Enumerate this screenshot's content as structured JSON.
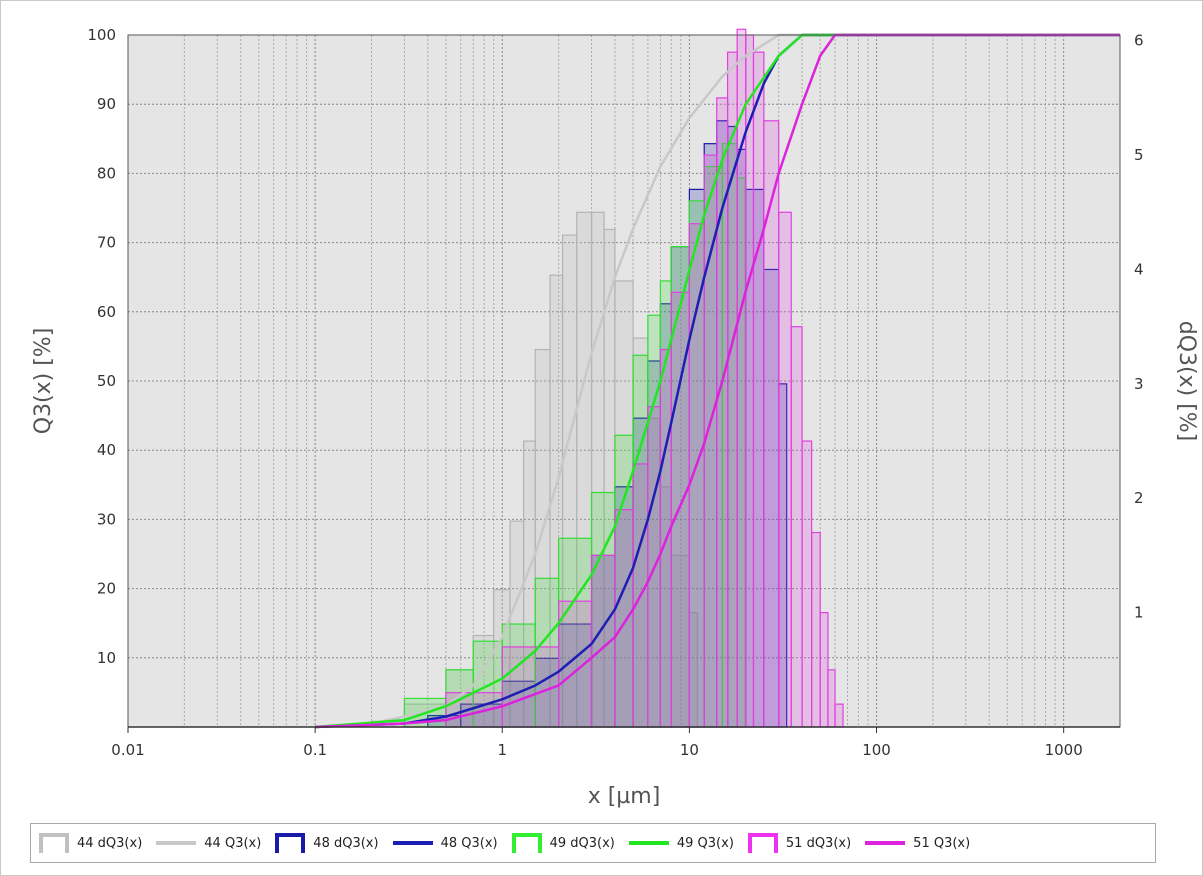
{
  "chart_data": {
    "type": "bar+line",
    "title": "",
    "xlabel": "x [µm]",
    "ylabel_left": "Q3(x) [%]",
    "ylabel_right": "dQ3(x) [%]",
    "x_scale": "log",
    "xlim": [
      0.01,
      2000
    ],
    "ylim_left": [
      0,
      100
    ],
    "ylim_right": [
      0,
      6.05
    ],
    "x_ticks": [
      "0.01",
      "0.1",
      "1",
      "10",
      "100",
      "1000"
    ],
    "y_left_ticks": [
      "10",
      "20",
      "30",
      "40",
      "50",
      "60",
      "70",
      "80",
      "90",
      "100"
    ],
    "y_right_ticks": [
      "1",
      "2",
      "3",
      "4",
      "5",
      "6"
    ],
    "grid": true,
    "legend_position": "bottom",
    "series": [
      {
        "name": "44 dQ3(x)",
        "kind": "histogram",
        "axis": "right",
        "color": "#b4b4b4",
        "x": [
          0.1,
          0.2,
          0.3,
          0.5,
          0.7,
          0.9,
          1.1,
          1.3,
          1.5,
          1.8,
          2.1,
          2.5,
          3.0,
          3.5,
          4.0,
          5.0,
          6.0,
          7.0,
          8.0,
          10.0
        ],
        "values": [
          0.0,
          0.05,
          0.2,
          0.5,
          0.8,
          1.2,
          1.8,
          2.5,
          3.3,
          3.95,
          4.3,
          4.5,
          4.5,
          4.35,
          3.9,
          3.4,
          2.7,
          2.1,
          1.5,
          1.0
        ]
      },
      {
        "name": "44 Q3(x)",
        "kind": "line",
        "axis": "left",
        "color": "#c8c8c8",
        "x": [
          0.1,
          0.2,
          0.3,
          0.5,
          0.7,
          1.0,
          1.5,
          2.0,
          2.5,
          3.0,
          4.0,
          5.0,
          7.0,
          10.0,
          15.0,
          20.0,
          30.0
        ],
        "values": [
          0,
          0.5,
          1.5,
          3,
          6,
          13,
          25,
          36,
          46,
          54,
          65,
          72,
          81,
          88,
          94,
          97,
          100
        ]
      },
      {
        "name": "48 dQ3(x)",
        "kind": "histogram",
        "axis": "right",
        "color": "#1a1aaa",
        "x": [
          0.2,
          0.4,
          0.6,
          1.0,
          1.5,
          2.0,
          3.0,
          4.0,
          5.0,
          6.0,
          7.0,
          8.0,
          10.0,
          12.0,
          14.0,
          16.0,
          18.0,
          20.0,
          25.0,
          30.0
        ],
        "values": [
          0.0,
          0.1,
          0.2,
          0.4,
          0.6,
          0.9,
          1.5,
          2.1,
          2.7,
          3.2,
          3.7,
          4.2,
          4.7,
          5.1,
          5.3,
          5.25,
          5.05,
          4.7,
          4.0,
          3.0
        ]
      },
      {
        "name": "48 Q3(x)",
        "kind": "line",
        "axis": "left",
        "color": "#1e1eb4",
        "x": [
          0.1,
          0.3,
          0.5,
          1.0,
          1.5,
          2.0,
          3.0,
          4.0,
          5.0,
          6.0,
          7.0,
          8.0,
          10.0,
          12.0,
          15.0,
          20.0,
          25.0,
          30.0,
          40.0
        ],
        "values": [
          0,
          0.5,
          1.5,
          4,
          6,
          8,
          12,
          17,
          23,
          30,
          37,
          44,
          56,
          65,
          75,
          86,
          93,
          97,
          100
        ]
      },
      {
        "name": "49 dQ3(x)",
        "kind": "histogram",
        "axis": "right",
        "color": "#33dd33",
        "x": [
          0.3,
          0.5,
          0.7,
          1.0,
          1.5,
          2.0,
          3.0,
          4.0,
          5.0,
          6.0,
          7.0,
          8.0,
          10.0,
          12.0,
          15.0,
          18.0
        ],
        "values": [
          0.25,
          0.5,
          0.75,
          0.9,
          1.3,
          1.65,
          2.05,
          2.55,
          3.25,
          3.6,
          3.9,
          4.2,
          4.6,
          4.9,
          5.1,
          4.8
        ]
      },
      {
        "name": "49 Q3(x)",
        "kind": "line",
        "axis": "left",
        "color": "#22e622",
        "x": [
          0.1,
          0.3,
          0.5,
          1.0,
          1.5,
          2.0,
          3.0,
          4.0,
          5.0,
          6.0,
          7.0,
          8.0,
          10.0,
          12.0,
          15.0,
          20.0,
          30.0,
          40.0
        ],
        "values": [
          0,
          1,
          3,
          7,
          11,
          15,
          22,
          29,
          37,
          44,
          50,
          56,
          66,
          74,
          82,
          90,
          97,
          100
        ]
      },
      {
        "name": "51 dQ3(x)",
        "kind": "histogram",
        "axis": "right",
        "color": "#e040e0",
        "x": [
          0.5,
          1.0,
          2.0,
          3.0,
          4.0,
          5.0,
          6.0,
          7.0,
          8.0,
          10.0,
          12.0,
          14.0,
          16.0,
          18.0,
          20.0,
          22.0,
          25.0,
          30.0,
          35.0,
          40.0,
          45.0,
          50.0,
          55.0,
          60.0
        ],
        "values": [
          0.3,
          0.7,
          1.1,
          1.5,
          1.9,
          2.3,
          2.8,
          3.3,
          3.8,
          4.4,
          5.0,
          5.5,
          5.9,
          6.1,
          6.05,
          5.9,
          5.3,
          4.5,
          3.5,
          2.5,
          1.7,
          1.0,
          0.5,
          0.2
        ]
      },
      {
        "name": "51 Q3(x)",
        "kind": "line",
        "axis": "left",
        "color": "#dd22dd",
        "x": [
          0.1,
          0.3,
          0.5,
          1.0,
          2.0,
          3.0,
          4.0,
          5.0,
          6.0,
          7.0,
          8.0,
          10.0,
          12.0,
          15.0,
          20.0,
          25.0,
          30.0,
          40.0,
          50.0,
          60.0
        ],
        "values": [
          0,
          0.5,
          1,
          3,
          6,
          10,
          13,
          17,
          21,
          25,
          29,
          35,
          41,
          50,
          63,
          72,
          80,
          90,
          97,
          100
        ]
      }
    ],
    "legend": [
      {
        "label": "44 dQ3(x)",
        "kind": "box",
        "color": "#c0c0c0"
      },
      {
        "label": "44 Q3(x)",
        "kind": "line",
        "color": "#c8c8c8"
      },
      {
        "label": "48 dQ3(x)",
        "kind": "box",
        "color": "#1a1aaa"
      },
      {
        "label": "48 Q3(x)",
        "kind": "line",
        "color": "#1e1eb4"
      },
      {
        "label": "49 dQ3(x)",
        "kind": "box",
        "color": "#33ee33"
      },
      {
        "label": "49 Q3(x)",
        "kind": "line",
        "color": "#22e622"
      },
      {
        "label": "51 dQ3(x)",
        "kind": "box",
        "color": "#ee33ee"
      },
      {
        "label": "51 Q3(x)",
        "kind": "line",
        "color": "#dd22dd"
      }
    ]
  }
}
